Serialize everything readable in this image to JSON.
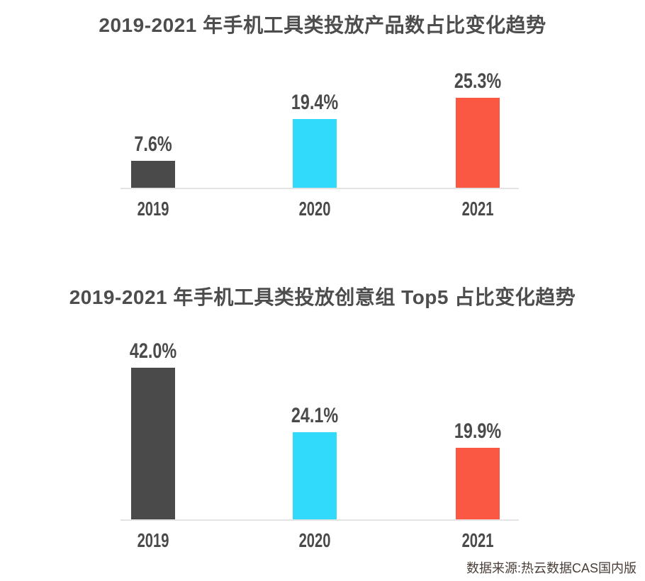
{
  "page": {
    "background": "#FFFFFF",
    "source_note": "数据来源:热云数据CAS国内版"
  },
  "colors": {
    "bar_2019": "#4A4A4A",
    "bar_2020": "#31DAFA",
    "bar_2021": "#FB5843",
    "title_text": "#4D4D4D",
    "label_text": "#4A4A4A",
    "axis_line": "#E4E4E4",
    "source_text": "#4A3E38"
  },
  "chart_data": [
    {
      "type": "bar",
      "title": "2019-2021 年手机工具类投放产品数占比变化趋势",
      "categories": [
        "2019",
        "2020",
        "2021"
      ],
      "values": [
        7.6,
        19.4,
        25.3
      ],
      "value_labels": [
        "7.6%",
        "19.4%",
        "25.3%"
      ],
      "unit": "%",
      "ylim": [
        0,
        30
      ],
      "grid": false,
      "legend": "none",
      "bar_colors": [
        "#4A4A4A",
        "#31DAFA",
        "#FB5843"
      ]
    },
    {
      "type": "bar",
      "title": "2019-2021 年手机工具类投放创意组 Top5 占比变化趋势",
      "categories": [
        "2019",
        "2020",
        "2021"
      ],
      "values": [
        42.0,
        24.1,
        19.9
      ],
      "value_labels": [
        "42.0%",
        "24.1%",
        "19.9%"
      ],
      "unit": "%",
      "ylim": [
        0,
        50
      ],
      "grid": false,
      "legend": "none",
      "bar_colors": [
        "#4A4A4A",
        "#31DAFA",
        "#FB5843"
      ]
    }
  ]
}
